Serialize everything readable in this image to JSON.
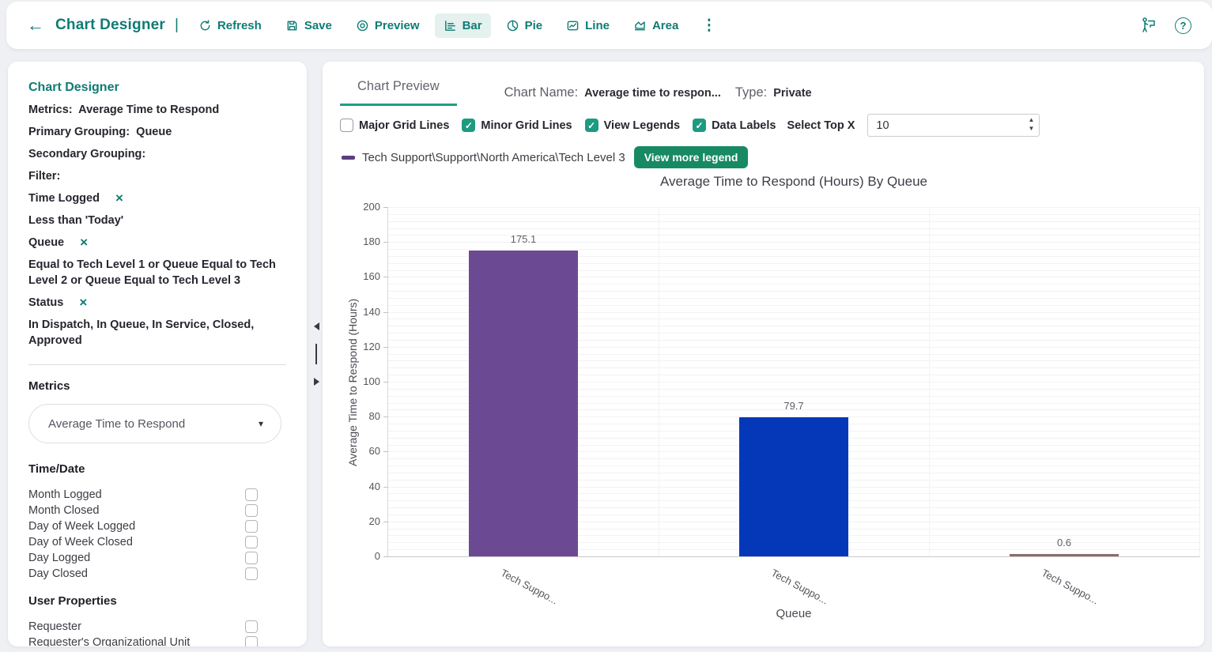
{
  "colors": {
    "accent": "#0e7c74",
    "tab_underline": "#1fa07f",
    "checkbox_checked": "#1d9b80",
    "legend_button_bg": "#178a63",
    "active_nav_bg": "#e4f1ee"
  },
  "icons": {
    "back": "←",
    "kebab": "⋮",
    "help": "?",
    "close": "×",
    "check": "✓",
    "caret_down": "▾",
    "spinner_up": "▲",
    "spinner_down": "▼",
    "pipe": "|"
  },
  "topbar": {
    "title": "Chart Designer",
    "nav": [
      {
        "label": "Refresh",
        "active": false
      },
      {
        "label": "Save",
        "active": false
      },
      {
        "label": "Preview",
        "active": false
      },
      {
        "label": "Bar",
        "active": true
      },
      {
        "label": "Pie",
        "active": false
      },
      {
        "label": "Line",
        "active": false
      },
      {
        "label": "Area",
        "active": false
      }
    ]
  },
  "sidebar": {
    "title": "Chart Designer",
    "summary": [
      {
        "label": "Metrics:",
        "value": "Average Time to Respond"
      },
      {
        "label": "Primary Grouping:",
        "value": "Queue"
      },
      {
        "label": "Secondary Grouping:",
        "value": ""
      },
      {
        "label": "Filter:",
        "value": ""
      }
    ],
    "filters": [
      {
        "name": "Time Logged",
        "detail": "Less than 'Today'"
      },
      {
        "name": "Queue",
        "detail": "Equal to Tech Level 1 or Queue Equal to Tech Level 2 or Queue Equal to Tech Level 3"
      },
      {
        "name": "Status",
        "detail": "In Dispatch, In Queue, In Service, Closed, Approved"
      }
    ],
    "metrics_section": {
      "heading": "Metrics",
      "selected": "Average Time to Respond"
    },
    "time_date": {
      "heading": "Time/Date",
      "options": [
        "Month Logged",
        "Month Closed",
        "Day of Week Logged",
        "Day of Week Closed",
        "Day Logged",
        "Day Closed"
      ]
    },
    "user_properties": {
      "heading": "User Properties",
      "options": [
        "Requester",
        "Requester's Organizational Unit"
      ]
    }
  },
  "preview": {
    "tab": "Chart Preview",
    "chart_name_label": "Chart Name:",
    "chart_name": "Average time to respon...",
    "type_label": "Type:",
    "type_value": "Private",
    "options": [
      {
        "label": "Major Grid Lines",
        "checked": false
      },
      {
        "label": "Minor Grid Lines",
        "checked": true
      },
      {
        "label": "View Legends",
        "checked": true
      },
      {
        "label": "Data Labels",
        "checked": true
      }
    ],
    "select_top_x_label": "Select Top X",
    "select_top_x_value": "10",
    "legend": {
      "swatch_color": "#5c3d82",
      "label": "Tech Support\\Support\\North America\\Tech Level 3",
      "button": "View more legend"
    }
  },
  "chart_data": {
    "type": "bar",
    "title": "Average Time to Respond (Hours) By Queue",
    "xlabel": "Queue",
    "ylabel": "Average Time to Respond (Hours)",
    "ylim": [
      0,
      200
    ],
    "ytick_step": 20,
    "minor_grid": true,
    "minor_step": 4,
    "major_grid": false,
    "data_labels": true,
    "categories": [
      "Tech Suppo...",
      "Tech Suppo...",
      "Tech Suppo..."
    ],
    "values": [
      175.1,
      79.7,
      0.6
    ],
    "bar_colors": [
      "#6b4a93",
      "#0537b9",
      "#8a6e6b"
    ],
    "legend_entries": [
      "Tech Support\\Support\\North America\\Tech Level 3"
    ],
    "legend_position": "top-left"
  }
}
